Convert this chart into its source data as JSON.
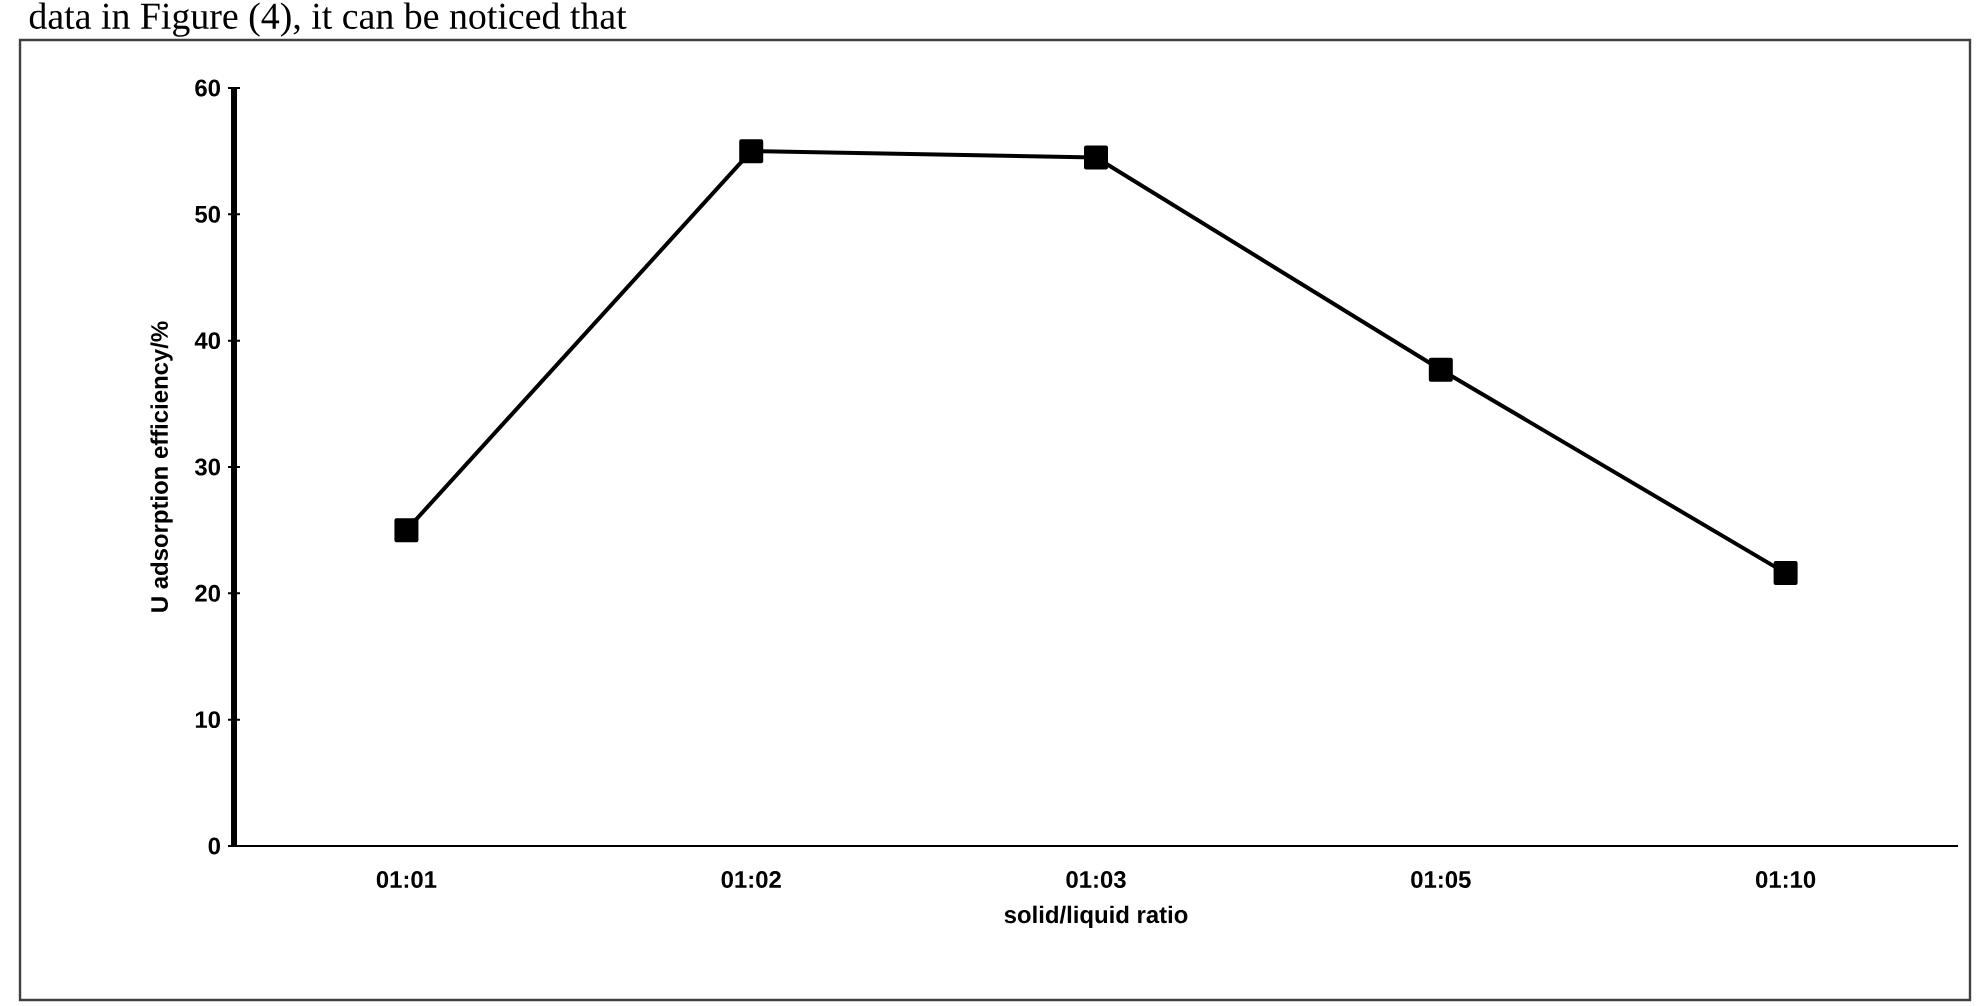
{
  "chart_data": {
    "type": "line",
    "annotations": [
      "data in Figure (4), it can be noticed that"
    ],
    "xlabel": "solid/liquid ratio",
    "ylabel": "U adsorption efficiency/%",
    "categories": [
      "01:01",
      "01:02",
      "01:03",
      "01:05",
      "01:10"
    ],
    "series": [
      {
        "color": "#000000",
        "values": [
          25,
          55,
          54.5,
          37.7,
          21.6
        ]
      }
    ],
    "marker": "square",
    "line_style": "solid",
    "grid": false,
    "ylim": [
      0,
      60
    ],
    "yticks": [
      0,
      10,
      20,
      30,
      40,
      50,
      60
    ]
  }
}
